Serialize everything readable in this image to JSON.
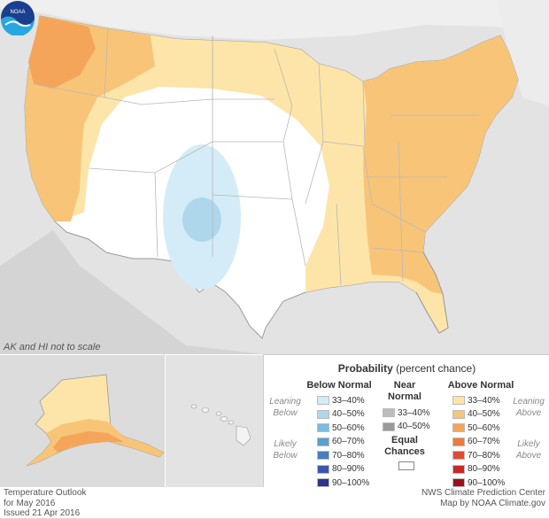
{
  "map": {
    "scale_note": "AK and HI not to scale",
    "logo_text": "NOAA",
    "region_categories": {
      "northwest": "Above Normal 50–60%",
      "west_coast": "Above Normal 40–50%",
      "northern_plains_great_lakes": "Above Normal 33–40%",
      "east": "Above Normal 40–50%",
      "central_southwest": "Equal Chances",
      "four_corners_ring": "Below Normal 33–40%",
      "four_corners_core": "Below Normal 40–50%",
      "alaska_south": "Above Normal 50–60%"
    }
  },
  "legend": {
    "title_bold": "Probability",
    "title_rest": " (percent chance)",
    "below_header": "Below Normal",
    "near_header_1": "Near",
    "near_header_2": "Normal",
    "above_header": "Above Normal",
    "leaning_below_1": "Leaning",
    "leaning_below_2": "Below",
    "likely_below_1": "Likely",
    "likely_below_2": "Below",
    "leaning_above_1": "Leaning",
    "leaning_above_2": "Above",
    "likely_above_1": "Likely",
    "likely_above_2": "Above",
    "equal_1": "Equal",
    "equal_2": "Chances",
    "below": [
      {
        "label": "33–40%",
        "color": "#d4ecf7"
      },
      {
        "label": "40–50%",
        "color": "#aed7ec"
      },
      {
        "label": "50–60%",
        "color": "#7dbcdf"
      },
      {
        "label": "60–70%",
        "color": "#5b9fd1"
      },
      {
        "label": "70–80%",
        "color": "#4a7cc0"
      },
      {
        "label": "80–90%",
        "color": "#3a58ab"
      },
      {
        "label": "90–100%",
        "color": "#2b3590"
      }
    ],
    "near": [
      {
        "label": "33–40%",
        "color": "#bdbdbd"
      },
      {
        "label": "40–50%",
        "color": "#9a9a9a"
      }
    ],
    "above": [
      {
        "label": "33–40%",
        "color": "#fde5a9"
      },
      {
        "label": "40–50%",
        "color": "#f8c578"
      },
      {
        "label": "50–60%",
        "color": "#f4a55a"
      },
      {
        "label": "60–70%",
        "color": "#ee7a3c"
      },
      {
        "label": "70–80%",
        "color": "#e14b2f"
      },
      {
        "label": "80–90%",
        "color": "#c72a26"
      },
      {
        "label": "90–100%",
        "color": "#9e0d1f"
      }
    ]
  },
  "footer": {
    "left_1": "Temperature Outlook",
    "left_2": "for May 2016",
    "left_3": "Issued 21 Apr 2016",
    "right_1": "NWS Climate Prediction Center",
    "right_2": "Map by NOAA Climate.gov"
  }
}
